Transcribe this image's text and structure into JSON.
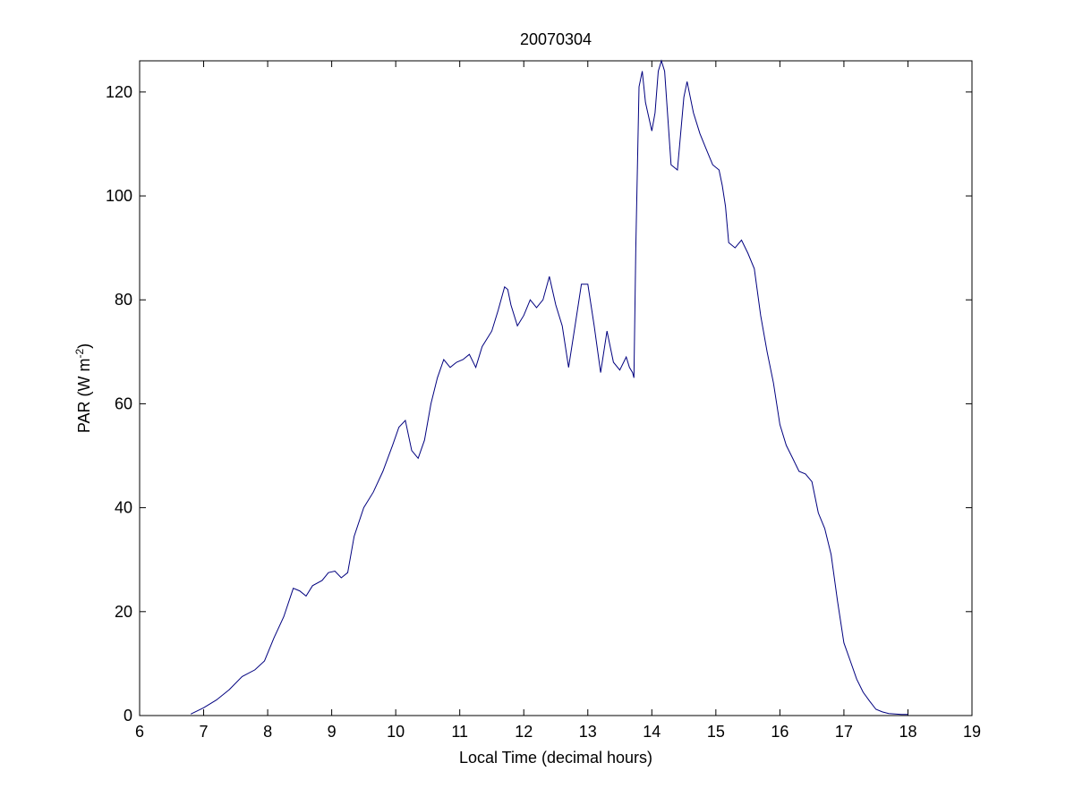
{
  "chart_data": {
    "type": "line",
    "title": "20070304",
    "xlabel": "Local Time (decimal hours)",
    "ylabel": {
      "main": "PAR (W m",
      "superscript": "-2",
      "close": ")"
    },
    "xlim": [
      6,
      19
    ],
    "ylim": [
      0,
      126
    ],
    "xticks": [
      6,
      7,
      8,
      9,
      10,
      11,
      12,
      13,
      14,
      15,
      16,
      17,
      18,
      19
    ],
    "yticks": [
      0,
      20,
      40,
      60,
      80,
      100,
      120
    ],
    "grid": false,
    "box": true,
    "line_color": "#00007f",
    "series": [
      {
        "x": [
          6.8,
          7.0,
          7.2,
          7.4,
          7.6,
          7.8,
          7.95,
          8.1,
          8.25,
          8.4,
          8.5,
          8.6,
          8.7,
          8.85,
          8.95,
          9.05,
          9.15,
          9.25,
          9.35,
          9.5,
          9.65,
          9.8,
          9.95,
          10.05,
          10.15,
          10.25,
          10.35,
          10.45,
          10.55,
          10.65,
          10.75,
          10.85,
          10.95,
          11.05,
          11.15,
          11.25,
          11.35,
          11.5,
          11.6,
          11.7,
          11.75,
          11.8,
          11.9,
          12.0,
          12.1,
          12.2,
          12.3,
          12.4,
          12.5,
          12.6,
          12.7,
          12.8,
          12.9,
          13.0,
          13.1,
          13.2,
          13.3,
          13.4,
          13.5,
          13.6,
          13.65,
          13.7,
          13.72,
          13.75,
          13.8,
          13.85,
          13.9,
          14.0,
          14.05,
          14.1,
          14.15,
          14.2,
          14.3,
          14.4,
          14.5,
          14.55,
          14.65,
          14.75,
          14.85,
          14.95,
          15.05,
          15.1,
          15.15,
          15.2,
          15.3,
          15.4,
          15.5,
          15.6,
          15.7,
          15.8,
          15.9,
          16.0,
          16.1,
          16.2,
          16.3,
          16.4,
          16.5,
          16.6,
          16.7,
          16.8,
          16.9,
          17.0,
          17.1,
          17.2,
          17.3,
          17.4,
          17.5,
          17.6,
          17.7,
          17.8,
          17.9,
          18.0
        ],
        "y": [
          0.3,
          1.5,
          3.0,
          5.0,
          7.5,
          8.8,
          10.5,
          15.0,
          19.0,
          24.5,
          24.0,
          23.0,
          25.0,
          26.0,
          27.5,
          27.8,
          26.5,
          27.5,
          34.5,
          40.0,
          43.0,
          47.0,
          52.0,
          55.5,
          56.8,
          51.0,
          49.5,
          53.0,
          60.0,
          65.0,
          68.5,
          67.0,
          68.0,
          68.5,
          69.5,
          67.0,
          71.0,
          74.0,
          78.0,
          82.5,
          82.0,
          79.0,
          75.0,
          77.0,
          80.0,
          78.5,
          80.0,
          84.5,
          79.0,
          75.0,
          67.0,
          75.0,
          83.0,
          83.0,
          75.0,
          66.0,
          74.0,
          68.0,
          66.5,
          69.0,
          67.0,
          66.0,
          65.0,
          90.0,
          121.0,
          124.0,
          118.0,
          112.5,
          116.0,
          124.0,
          126.0,
          124.0,
          106.0,
          105.0,
          119.0,
          122.0,
          116.0,
          112.0,
          109.0,
          106.0,
          105.0,
          102.0,
          98.0,
          91.0,
          90.0,
          91.5,
          89.0,
          86.0,
          77.0,
          70.0,
          64.0,
          56.0,
          52.0,
          49.5,
          47.0,
          46.5,
          45.0,
          39.0,
          36.0,
          31.0,
          22.0,
          14.0,
          10.5,
          7.0,
          4.5,
          2.8,
          1.2,
          0.7,
          0.4,
          0.3,
          0.2,
          0.2
        ]
      }
    ]
  }
}
